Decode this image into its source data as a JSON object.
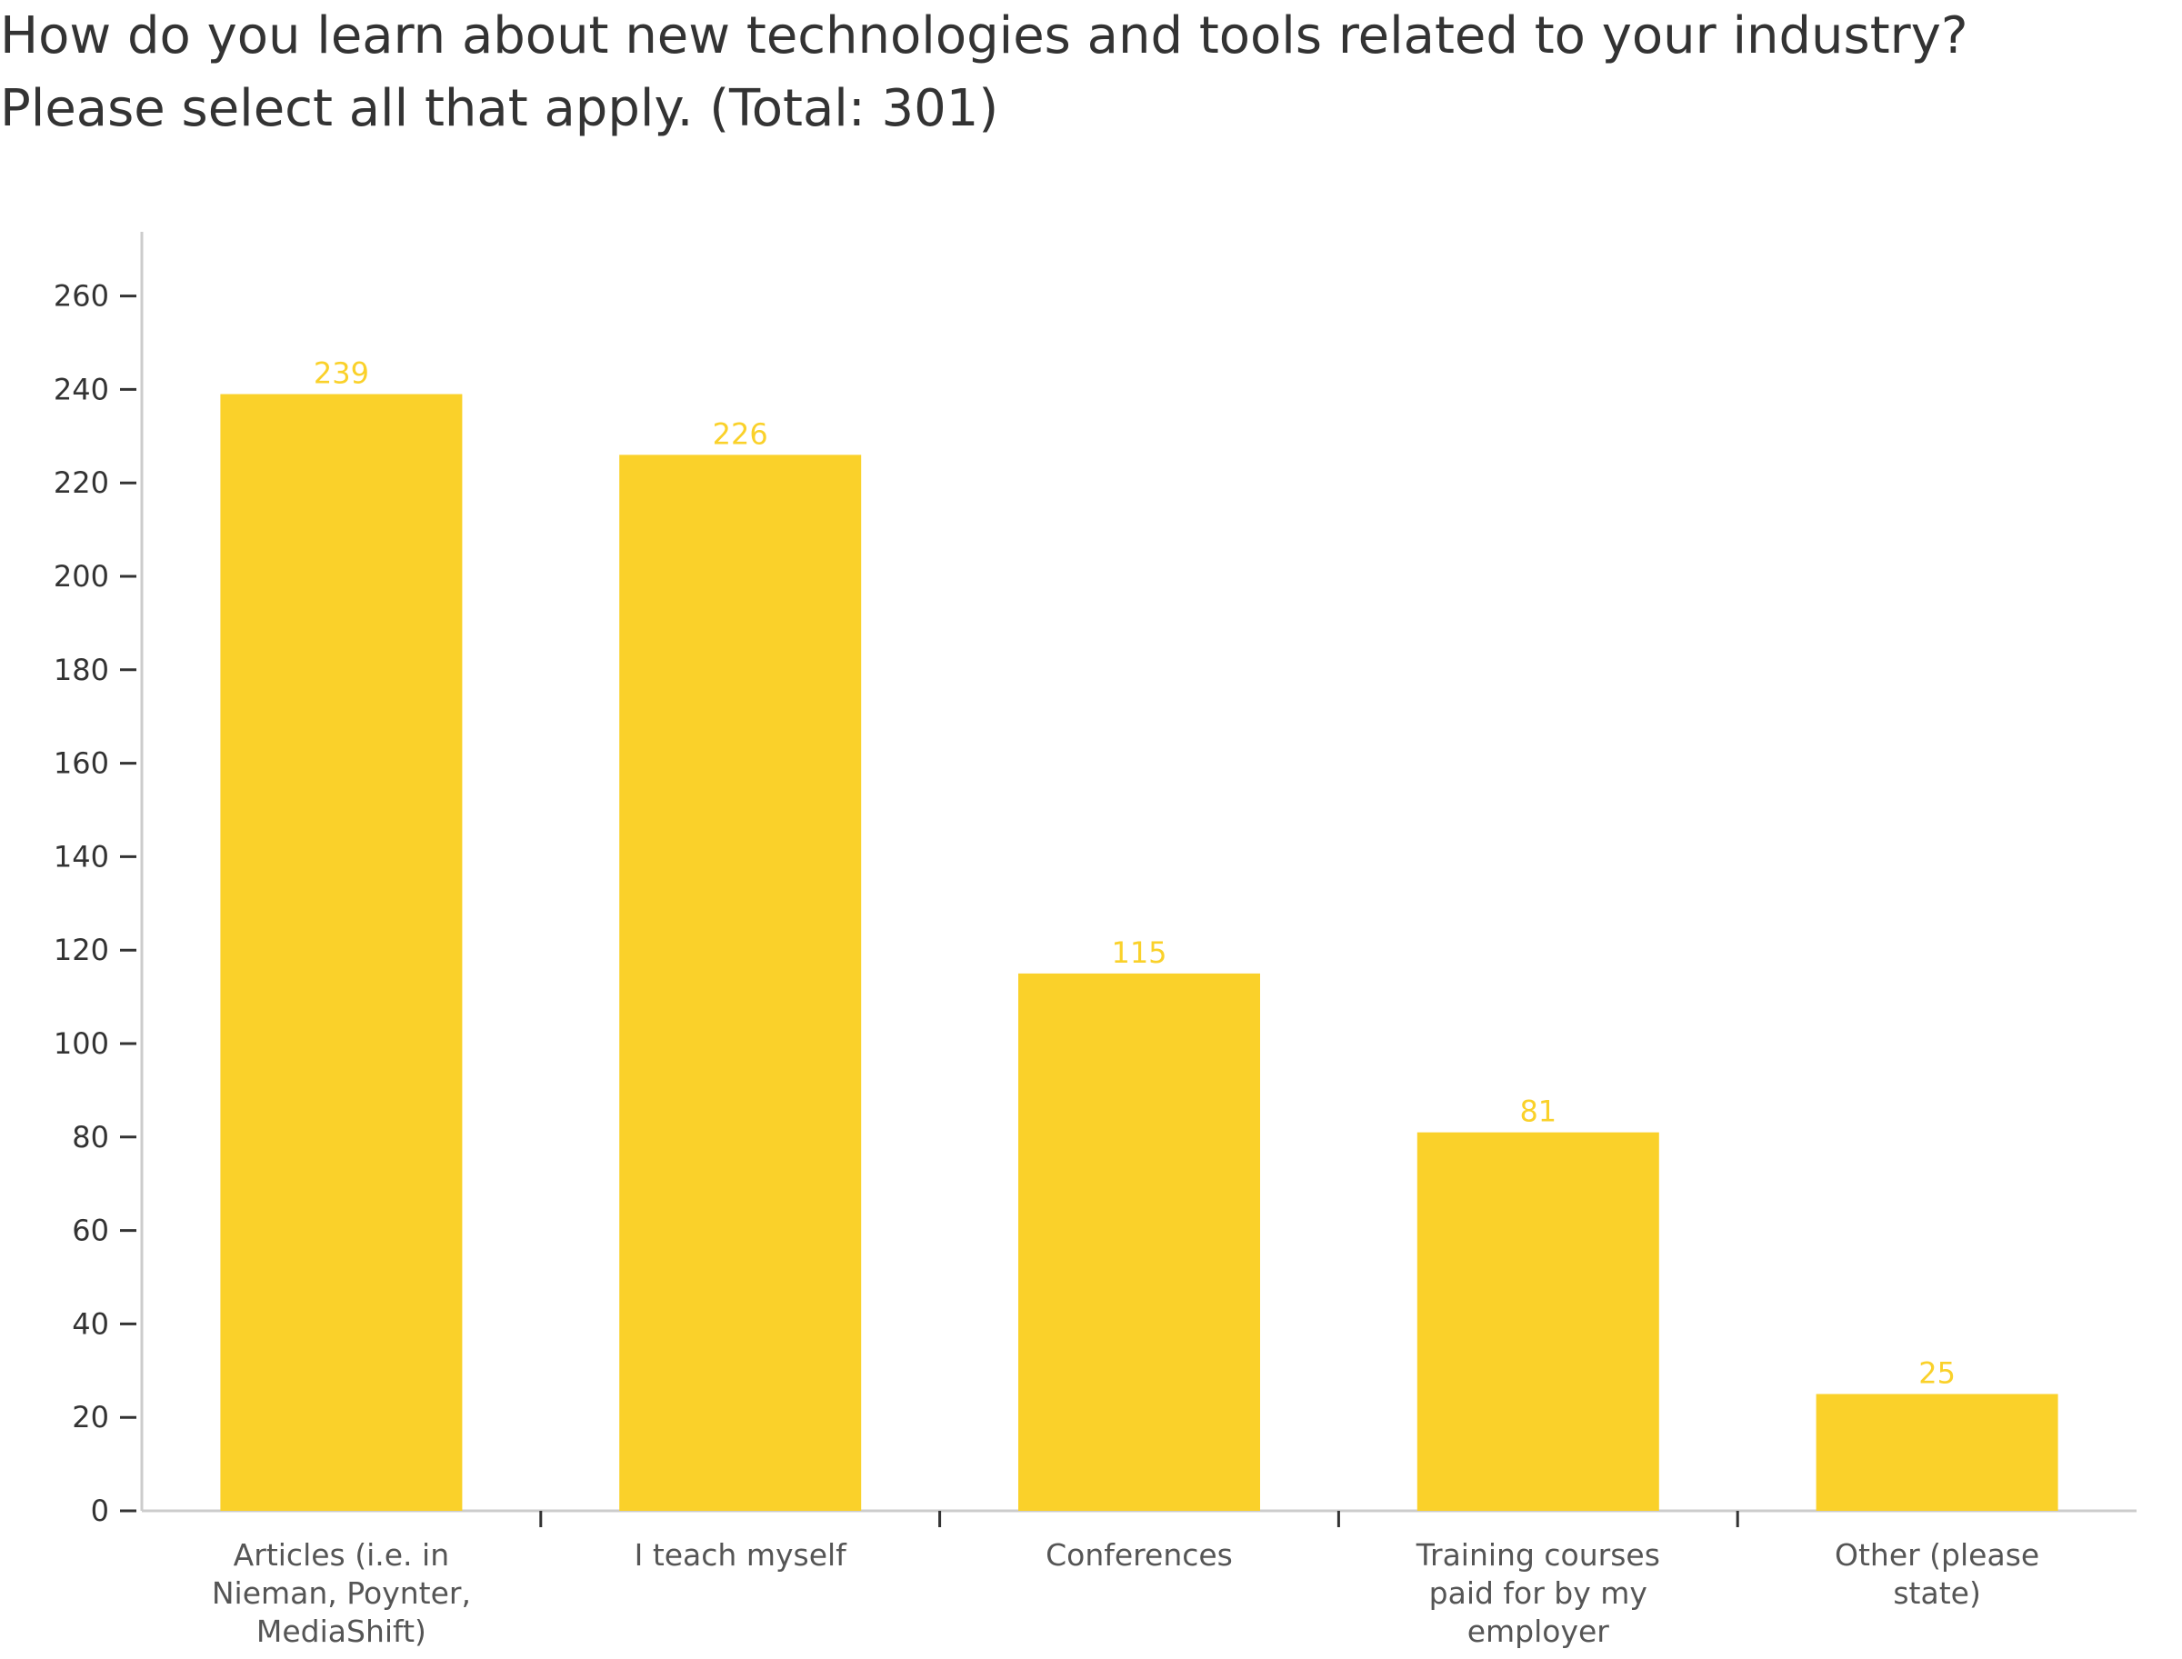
{
  "chart_data": {
    "type": "bar",
    "title": "How do you learn about new technologies and tools related to your industry? Please select all that apply. (Total: 301)",
    "categories": [
      [
        "Articles (i.e. in",
        "Nieman, Poynter,",
        "MediaShift)"
      ],
      [
        "I teach myself"
      ],
      [
        "Conferences"
      ],
      [
        "Training courses",
        "paid for by my",
        "employer"
      ],
      [
        "Other (please",
        "state)"
      ]
    ],
    "values": [
      239,
      226,
      115,
      81,
      25
    ],
    "value_labels": [
      "239",
      "226",
      "115",
      "81",
      "25"
    ],
    "yticks": [
      "0",
      "20",
      "40",
      "60",
      "80",
      "100",
      "120",
      "140",
      "160",
      "180",
      "200",
      "220",
      "240",
      "260"
    ],
    "ylim": [
      0,
      274
    ],
    "xlabel": "",
    "ylabel": "",
    "legend": "none",
    "grid": false,
    "colors": {
      "bar": "#fad12a",
      "value_label": "#fad12a",
      "axis": "#cccccc",
      "tick": "#333333",
      "text": "#333333"
    }
  }
}
